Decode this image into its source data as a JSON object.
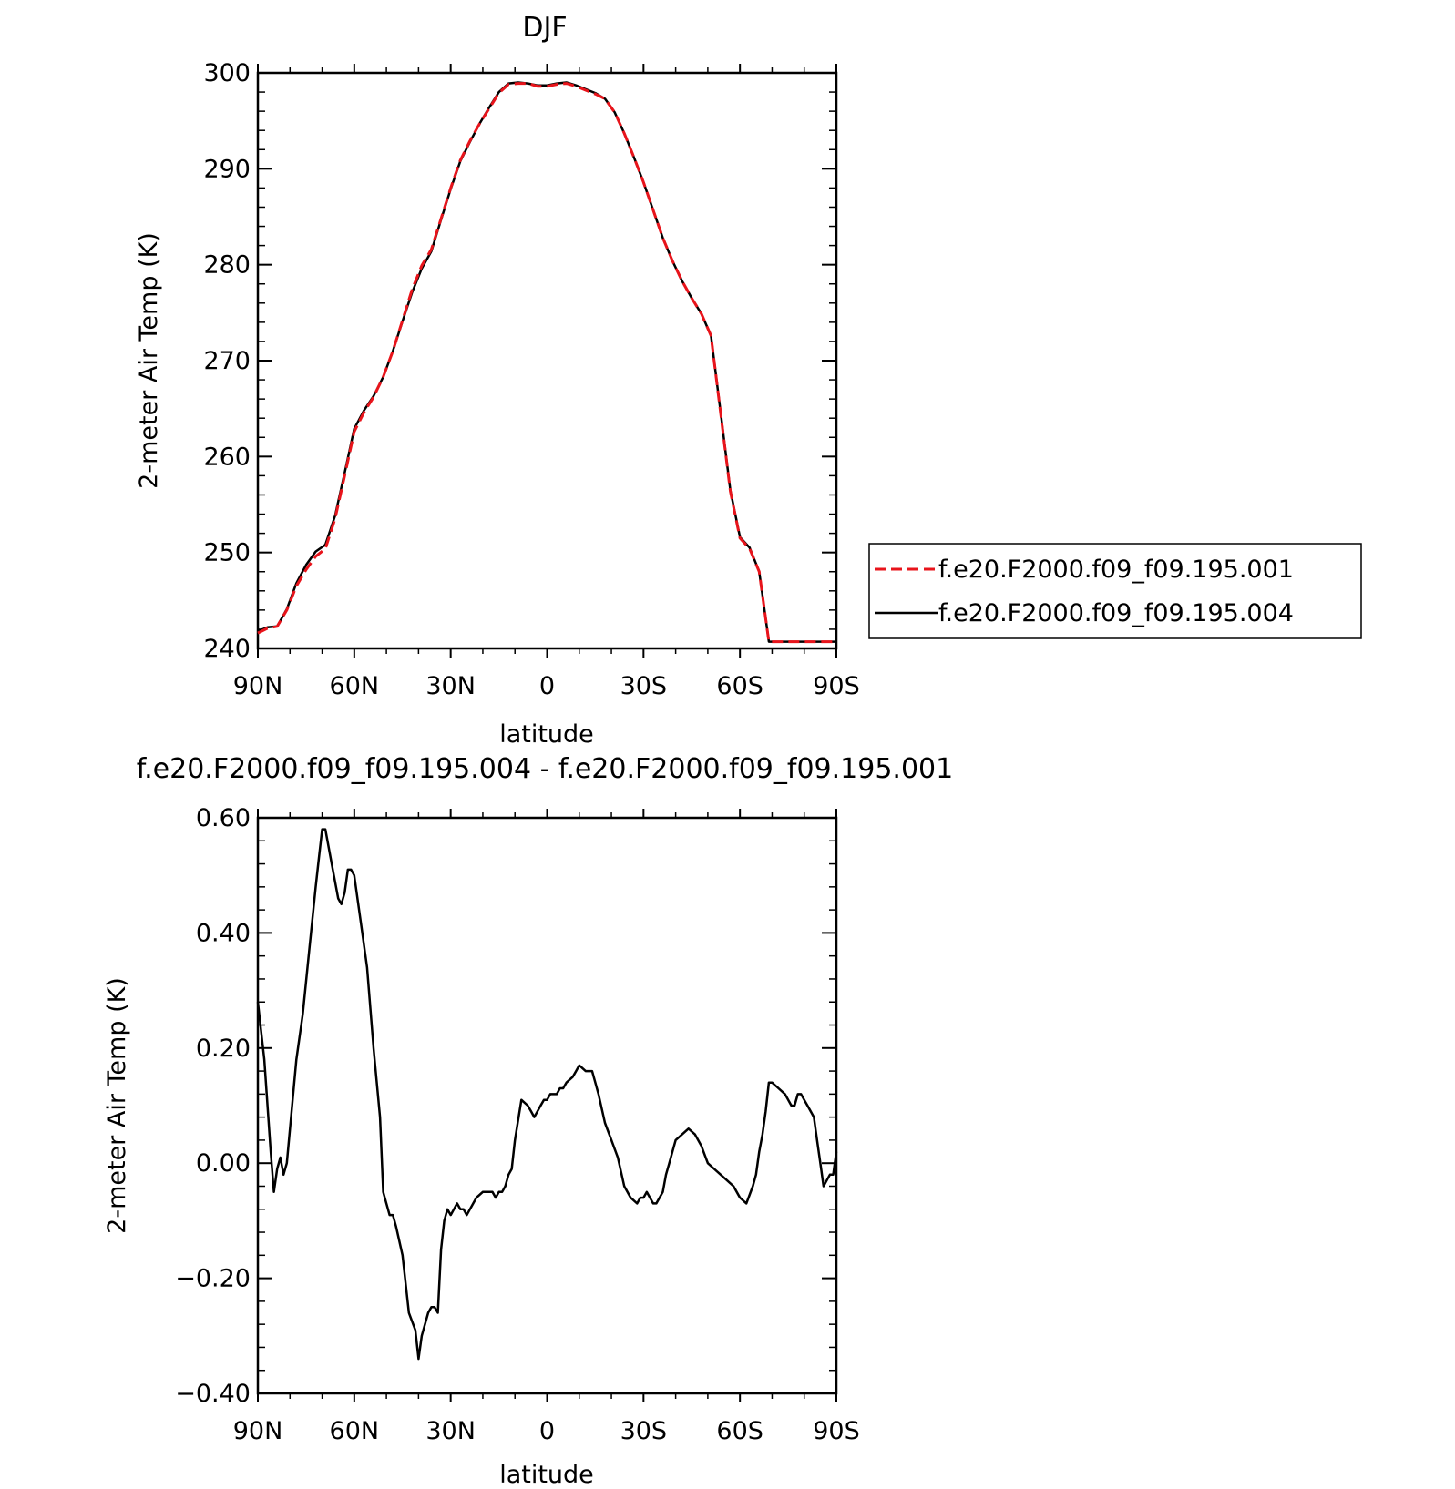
{
  "chart_data": [
    {
      "type": "line",
      "title": "DJF",
      "xlabel": "latitude",
      "ylabel": "2-meter Air Temp (K)",
      "xlim": [
        90,
        -90
      ],
      "ylim": [
        240,
        300
      ],
      "x_ticks": [
        90,
        60,
        30,
        0,
        -30,
        -60,
        -90
      ],
      "x_tick_labels": [
        "90N",
        "60N",
        "30N",
        "0",
        "30S",
        "60S",
        "90S"
      ],
      "y_ticks": [
        240,
        250,
        260,
        270,
        280,
        290,
        300
      ],
      "y_tick_labels": [
        "240",
        "250",
        "260",
        "270",
        "280",
        "290",
        "300"
      ],
      "legend_position": "right",
      "series": [
        {
          "name": "f.e20.F2000.f09_f09.195.001",
          "color": "#e8141b",
          "dash": "dashed",
          "x": [
            90,
            87,
            84,
            81,
            78,
            75,
            72,
            69,
            66,
            63,
            60,
            57,
            54,
            51,
            48,
            45,
            42,
            39,
            36,
            33,
            30,
            27,
            24,
            21,
            18,
            15,
            12,
            9,
            6,
            3,
            0,
            -3,
            -6,
            -9,
            -12,
            -15,
            -18,
            -21,
            -24,
            -27,
            -30,
            -33,
            -36,
            -39,
            -42,
            -45,
            -48,
            -51,
            -54,
            -57,
            -60,
            -63,
            -66,
            -69,
            -72,
            -75,
            -78,
            -81,
            -84,
            -87,
            -90
          ],
          "y": [
            241.6,
            242.1,
            242.3,
            244.0,
            246.5,
            248.2,
            249.6,
            250.4,
            253.5,
            258.0,
            262.6,
            264.6,
            266.2,
            268.3,
            271.0,
            274.2,
            277.4,
            279.9,
            281.6,
            284.8,
            288.0,
            290.9,
            292.9,
            294.7,
            296.3,
            297.9,
            298.8,
            298.9,
            298.9,
            298.6,
            298.6,
            298.8,
            298.9,
            298.6,
            298.2,
            297.8,
            297.3,
            295.9,
            293.7,
            291.2,
            288.6,
            285.7,
            282.8,
            280.4,
            278.3,
            276.5,
            274.9,
            272.6,
            264.5,
            256.4,
            251.5,
            250.4,
            248.0,
            240.7,
            240.7,
            240.7,
            240.7,
            240.7,
            240.7,
            240.7,
            240.7
          ]
        },
        {
          "name": "f.e20.F2000.f09_f09.195.004",
          "color": "#000000",
          "dash": "solid",
          "x": [
            90,
            87,
            84,
            81,
            78,
            75,
            72,
            69,
            66,
            63,
            60,
            57,
            54,
            51,
            48,
            45,
            42,
            39,
            36,
            33,
            30,
            27,
            24,
            21,
            18,
            15,
            12,
            9,
            6,
            3,
            0,
            -3,
            -6,
            -9,
            -12,
            -15,
            -18,
            -21,
            -24,
            -27,
            -30,
            -33,
            -36,
            -39,
            -42,
            -45,
            -48,
            -51,
            -54,
            -57,
            -60,
            -63,
            -66,
            -69,
            -72,
            -75,
            -78,
            -81,
            -84,
            -87,
            -90
          ],
          "y": [
            241.8,
            242.2,
            242.3,
            244.1,
            246.8,
            248.7,
            250.1,
            250.8,
            253.8,
            258.3,
            262.9,
            264.8,
            266.3,
            268.3,
            271.0,
            274.1,
            277.1,
            279.6,
            281.4,
            284.7,
            287.9,
            290.8,
            292.8,
            294.7,
            296.4,
            298.0,
            298.9,
            299.0,
            298.9,
            298.7,
            298.7,
            298.9,
            299.0,
            298.7,
            298.3,
            297.9,
            297.3,
            295.9,
            293.7,
            291.2,
            288.6,
            285.7,
            282.8,
            280.4,
            278.3,
            276.5,
            274.9,
            272.6,
            264.6,
            256.5,
            251.6,
            250.5,
            248.0,
            240.7,
            240.7,
            240.7,
            240.7,
            240.7,
            240.7,
            240.7,
            240.7
          ]
        }
      ]
    },
    {
      "type": "line",
      "title": "f.e20.F2000.f09_f09.195.004 - f.e20.F2000.f09_f09.195.001",
      "xlabel": "latitude",
      "ylabel": "2-meter Air Temp (K)",
      "xlim": [
        90,
        -90
      ],
      "ylim": [
        -0.4,
        0.6
      ],
      "x_ticks": [
        90,
        60,
        30,
        0,
        -30,
        -60,
        -90
      ],
      "x_tick_labels": [
        "90N",
        "60N",
        "30N",
        "0",
        "30S",
        "60S",
        "90S"
      ],
      "y_ticks": [
        -0.4,
        -0.2,
        0.0,
        0.2,
        0.4,
        0.6
      ],
      "y_tick_labels": [
        "−0.40",
        "−0.20",
        "0.00",
        "0.20",
        "0.40",
        "0.60"
      ],
      "series": [
        {
          "name": "",
          "color": "#000000",
          "dash": "solid",
          "x": [
            90,
            88,
            86,
            85,
            84,
            83,
            82,
            81,
            80,
            78,
            76,
            74,
            72,
            71,
            70,
            69,
            67,
            65,
            64,
            63,
            62,
            61,
            60,
            58,
            56,
            54,
            52,
            51,
            50,
            49,
            48,
            47,
            45,
            43,
            41,
            40,
            39,
            37,
            36,
            35,
            34,
            33,
            32,
            31,
            30,
            29,
            28,
            27,
            26,
            25,
            24,
            23,
            22,
            20,
            19,
            18,
            17,
            16,
            15,
            14,
            13,
            12,
            11,
            10,
            8,
            6,
            5,
            4,
            3,
            2,
            1,
            0,
            -1,
            -3,
            -4,
            -5,
            -6,
            -8,
            -9,
            -10,
            -12,
            -14,
            -15,
            -16,
            -18,
            -20,
            -22,
            -24,
            -26,
            -28,
            -29,
            -30,
            -31,
            -32,
            -33,
            -34,
            -36,
            -37,
            -38,
            -39,
            -40,
            -42,
            -44,
            -46,
            -48,
            -50,
            -52,
            -54,
            -56,
            -58,
            -60,
            -62,
            -64,
            -65,
            -66,
            -67,
            -68,
            -69,
            -70,
            -72,
            -74,
            -75,
            -76,
            -77,
            -78,
            -79,
            -80,
            -81,
            -83,
            -84,
            -85,
            -86,
            -87,
            -88,
            -89,
            -90
          ],
          "y": [
            0.28,
            0.18,
            0.02,
            -0.05,
            -0.01,
            0.01,
            -0.02,
            0.0,
            0.06,
            0.18,
            0.26,
            0.37,
            0.48,
            0.53,
            0.58,
            0.58,
            0.52,
            0.46,
            0.45,
            0.47,
            0.51,
            0.51,
            0.5,
            0.42,
            0.34,
            0.2,
            0.08,
            -0.05,
            -0.07,
            -0.09,
            -0.09,
            -0.11,
            -0.16,
            -0.26,
            -0.29,
            -0.34,
            -0.3,
            -0.26,
            -0.25,
            -0.25,
            -0.26,
            -0.15,
            -0.1,
            -0.08,
            -0.09,
            -0.08,
            -0.07,
            -0.08,
            -0.08,
            -0.09,
            -0.08,
            -0.07,
            -0.06,
            -0.05,
            -0.05,
            -0.05,
            -0.05,
            -0.06,
            -0.05,
            -0.05,
            -0.04,
            -0.02,
            -0.01,
            0.04,
            0.11,
            0.1,
            0.09,
            0.08,
            0.09,
            0.1,
            0.11,
            0.11,
            0.12,
            0.12,
            0.13,
            0.13,
            0.14,
            0.15,
            0.16,
            0.17,
            0.16,
            0.16,
            0.14,
            0.12,
            0.07,
            0.04,
            0.01,
            -0.04,
            -0.06,
            -0.07,
            -0.06,
            -0.06,
            -0.05,
            -0.06,
            -0.07,
            -0.07,
            -0.05,
            -0.02,
            0.0,
            0.02,
            0.04,
            0.05,
            0.06,
            0.05,
            0.03,
            0.0,
            -0.01,
            -0.02,
            -0.03,
            -0.04,
            -0.06,
            -0.07,
            -0.04,
            -0.02,
            0.02,
            0.05,
            0.09,
            0.14,
            0.14,
            0.13,
            0.12,
            0.11,
            0.1,
            0.1,
            0.12,
            0.12,
            0.11,
            0.1,
            0.08,
            0.04,
            0.0,
            -0.04,
            -0.03,
            -0.02,
            -0.02,
            0.02
          ]
        }
      ]
    }
  ]
}
